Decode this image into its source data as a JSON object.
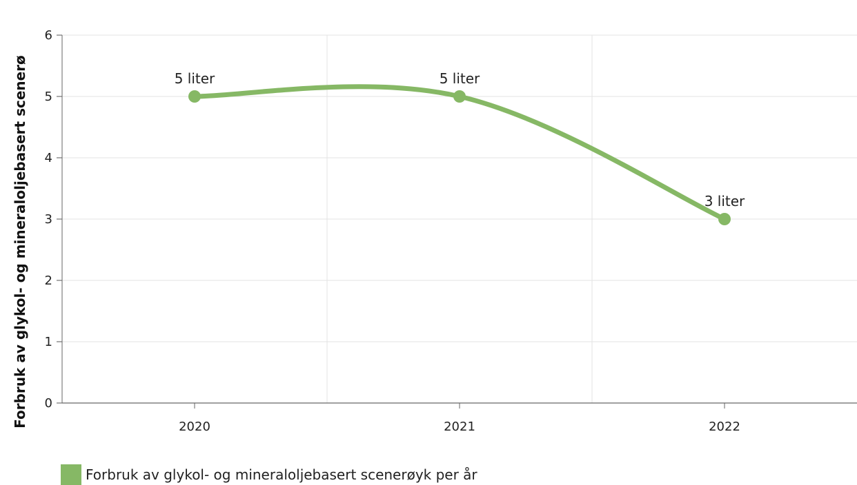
{
  "chart_data": {
    "type": "line",
    "categories": [
      "2020",
      "2021",
      "2022"
    ],
    "series": [
      {
        "name": "Forbruk av glykol- og mineraloljebasert scenerøyk per år",
        "values": [
          5,
          5,
          3
        ],
        "data_labels": [
          "5 liter",
          "5 liter",
          "3 liter"
        ],
        "color": "#86b865"
      }
    ],
    "ylabel": "Forbruk av glykol- og mineraloljebasert scenerø",
    "ylim": [
      0,
      6
    ],
    "yticks": [
      "0",
      "1",
      "2",
      "3",
      "4",
      "5",
      "6"
    ],
    "grid": true,
    "smooth": true,
    "legend_position": "bottom-left"
  }
}
